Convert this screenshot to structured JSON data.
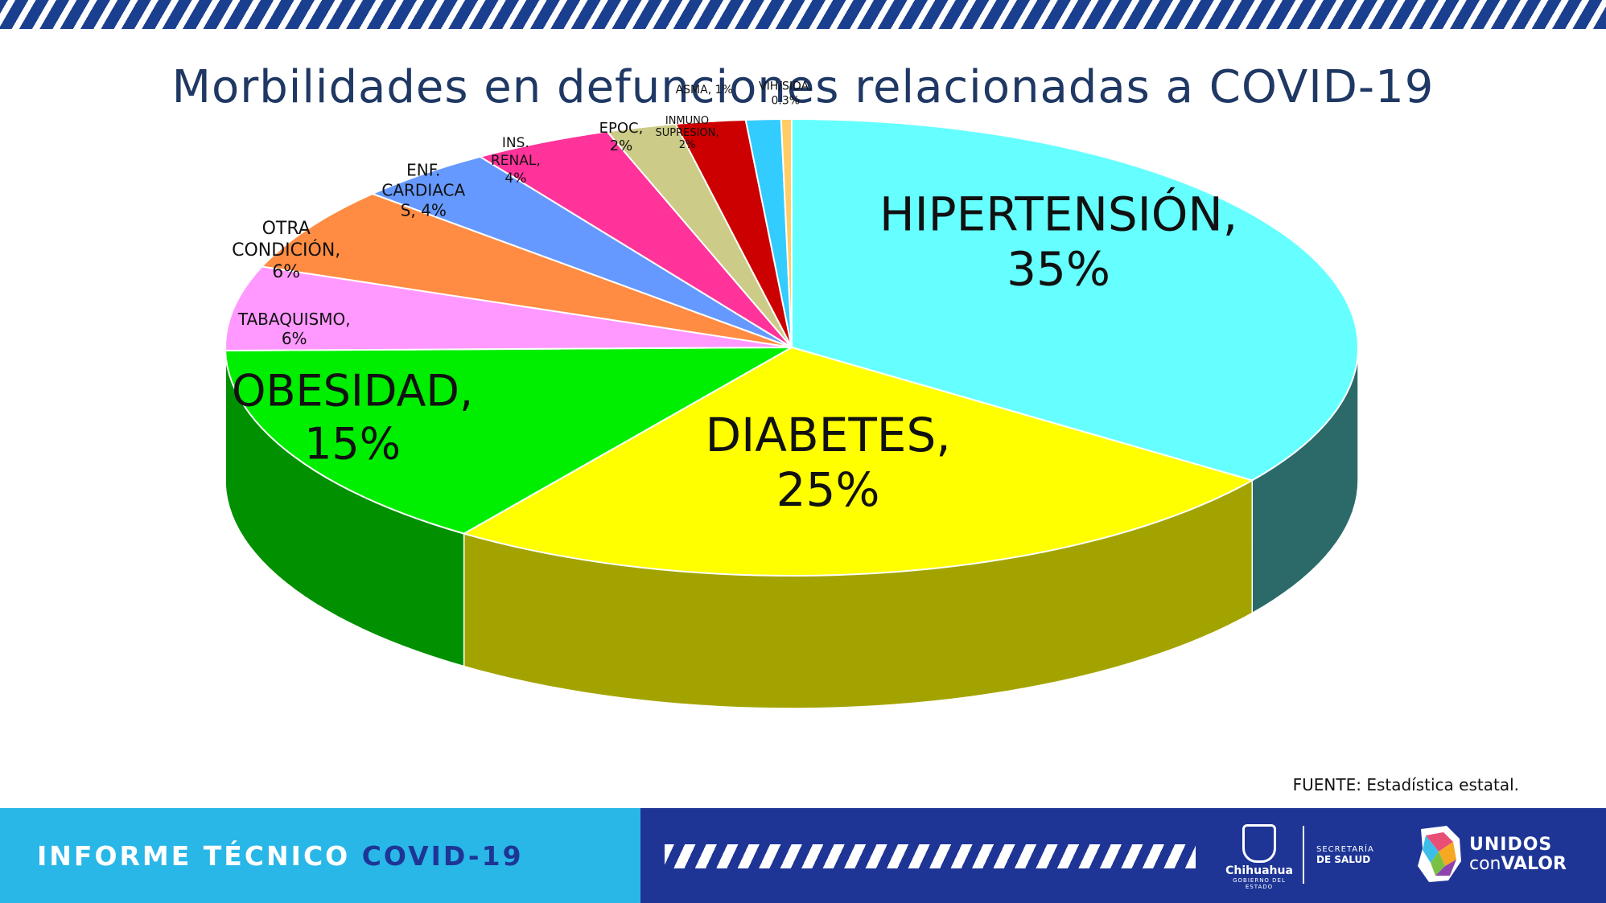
{
  "title": "Morbilidades en defunciones relacionadas a COVID-19",
  "source": "FUENTE: Estadística estatal.",
  "footer": {
    "report_prefix": "INFORME TÉCNICO ",
    "report_highlight": "COVID-19",
    "logo_chihuahua": "Chihuahua",
    "logo_chihuahua_sub": "GOBIERNO DEL ESTADO",
    "secretaria_line1": "SECRETARÍA",
    "secretaria_line2": "DE SALUD",
    "unidos_line1": "UNIDOS",
    "unidos_con": "con",
    "unidos_valor": "VALOR"
  },
  "chart_data": {
    "type": "pie",
    "title": "Morbilidades en defunciones relacionadas a COVID-19",
    "slices": [
      {
        "label": "HIPERTENSIÓN, 35%",
        "name": "HIPERTENSIÓN",
        "value": 35,
        "color": "#66ffff",
        "side": "#2c6a6a"
      },
      {
        "label": "DIABETES, 25%",
        "name": "DIABETES",
        "value": 25,
        "color": "#ffff00",
        "side": "#a3a300"
      },
      {
        "label": "OBESIDAD, 15%",
        "name": "OBESIDAD",
        "value": 15,
        "color": "#00ee00",
        "side": "#009000"
      },
      {
        "label": "TABAQUISMO, 6%",
        "name": "TABAQUISMO",
        "value": 6,
        "color": "#ff99ff",
        "side": "#a060a0"
      },
      {
        "label": "OTRA CONDICIÓN, 6%",
        "name": "OTRA CONDICIÓN",
        "value": 6,
        "color": "#ff8c42",
        "side": "#a85a28"
      },
      {
        "label": "ENF. CARDIACAS, 4%",
        "name": "ENF. CARDIACAS",
        "value": 4,
        "color": "#6699ff",
        "side": "#40609f"
      },
      {
        "label": "INS. RENAL, 4%",
        "name": "INS. RENAL",
        "value": 4,
        "color": "#ff3399",
        "side": "#a01e60"
      },
      {
        "label": "EPOC, 2%",
        "name": "EPOC",
        "value": 2,
        "color": "#cccc88",
        "side": "#888855"
      },
      {
        "label": "INMUNO SUPRESION, 2%",
        "name": "INMUNO SUPRESION",
        "value": 2,
        "color": "#cc0000",
        "side": "#800000"
      },
      {
        "label": "ASMA, 1%",
        "name": "ASMA",
        "value": 1,
        "color": "#33ccff",
        "side": "#1f80a0"
      },
      {
        "label": "VIH/SIDA, 0.3%",
        "name": "VIH/SIDA",
        "value": 0.3,
        "color": "#ffcc66",
        "side": "#a08040"
      }
    ],
    "label_lines": [
      {
        "lines": [
          "HIPERTENSIÓN,",
          "35%"
        ]
      },
      {
        "lines": [
          "DIABETES,",
          "25%"
        ]
      },
      {
        "lines": [
          "OBESIDAD,",
          "15%"
        ]
      },
      {
        "lines": [
          "TABAQUISMO,",
          "6%"
        ]
      },
      {
        "lines": [
          "OTRA",
          "CONDICIÓN,",
          "6%"
        ]
      },
      {
        "lines": [
          "ENF.",
          "CARDIACA",
          "S, 4%"
        ]
      },
      {
        "lines": [
          "INS.",
          "RENAL,",
          "4%"
        ]
      },
      {
        "lines": [
          "EPOC,",
          "2%"
        ]
      },
      {
        "lines": [
          "INMUNO",
          "SUPRESION,",
          "2%"
        ]
      },
      {
        "lines": [
          "ASMA, 1%"
        ]
      },
      {
        "lines": [
          "VIH/SIDA,",
          "0.3%"
        ]
      }
    ]
  }
}
